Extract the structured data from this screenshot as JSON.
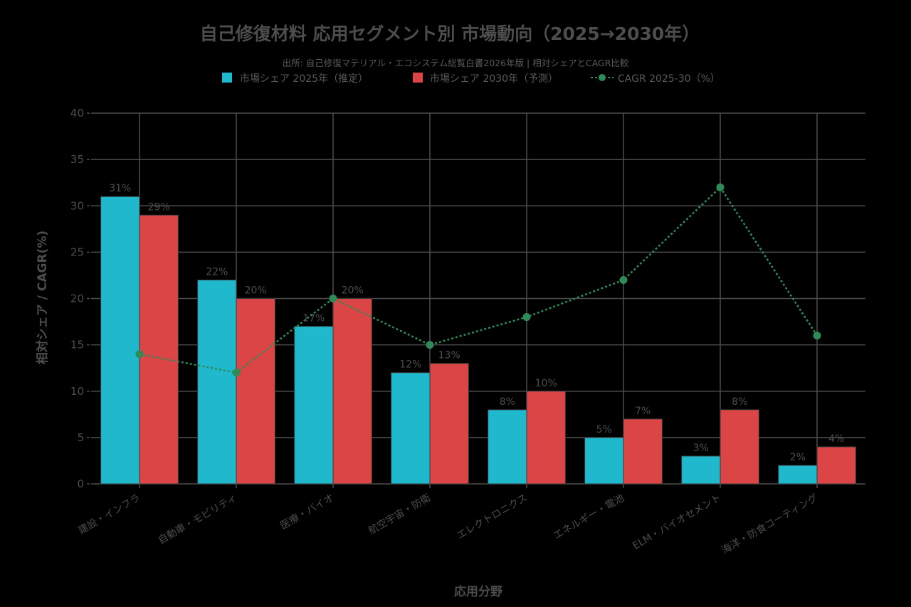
{
  "chart_data": {
    "type": "bar",
    "title": "自己修復材料 応用セグメント別 市場動向（2025→2030年）",
    "subtitle": "出所: 自己修復マテリアル・エコシステム総覧白書2026年版 | 相対シェアとCAGR比較",
    "xlabel": "応用分野",
    "ylabel": "相対シェア / CAGR(%)",
    "ylim": [
      0,
      40
    ],
    "yticks": [
      0,
      5,
      10,
      15,
      20,
      25,
      30,
      35,
      40
    ],
    "grid": true,
    "legend_position": "top",
    "categories": [
      "建設・インフラ",
      "自動車・モビリティ",
      "医療・バイオ",
      "航空宇宙・防衛",
      "エレクトロニクス",
      "エネルギー・電池",
      "ELM・バイオセメント",
      "海洋・防食コーティング"
    ],
    "series": [
      {
        "name": "市場シェア 2025年（推定）",
        "kind": "bar",
        "color": "#1fb8cd",
        "values": [
          31,
          22,
          17,
          12,
          8,
          5,
          3,
          2
        ],
        "labels": [
          "31%",
          "22%",
          "17%",
          "12%",
          "8%",
          "5%",
          "3%",
          "2%"
        ]
      },
      {
        "name": "市場シェア 2030年（予測）",
        "kind": "bar",
        "color": "#db4545",
        "values": [
          29,
          20,
          20,
          13,
          10,
          7,
          8,
          4
        ],
        "labels": [
          "29%",
          "20%",
          "20%",
          "13%",
          "10%",
          "7%",
          "8%",
          "4%"
        ]
      },
      {
        "name": "CAGR 2025-30（%）",
        "kind": "line",
        "color": "#2e8b57",
        "values": [
          14,
          12,
          20,
          15,
          18,
          22,
          32,
          16
        ]
      }
    ]
  }
}
